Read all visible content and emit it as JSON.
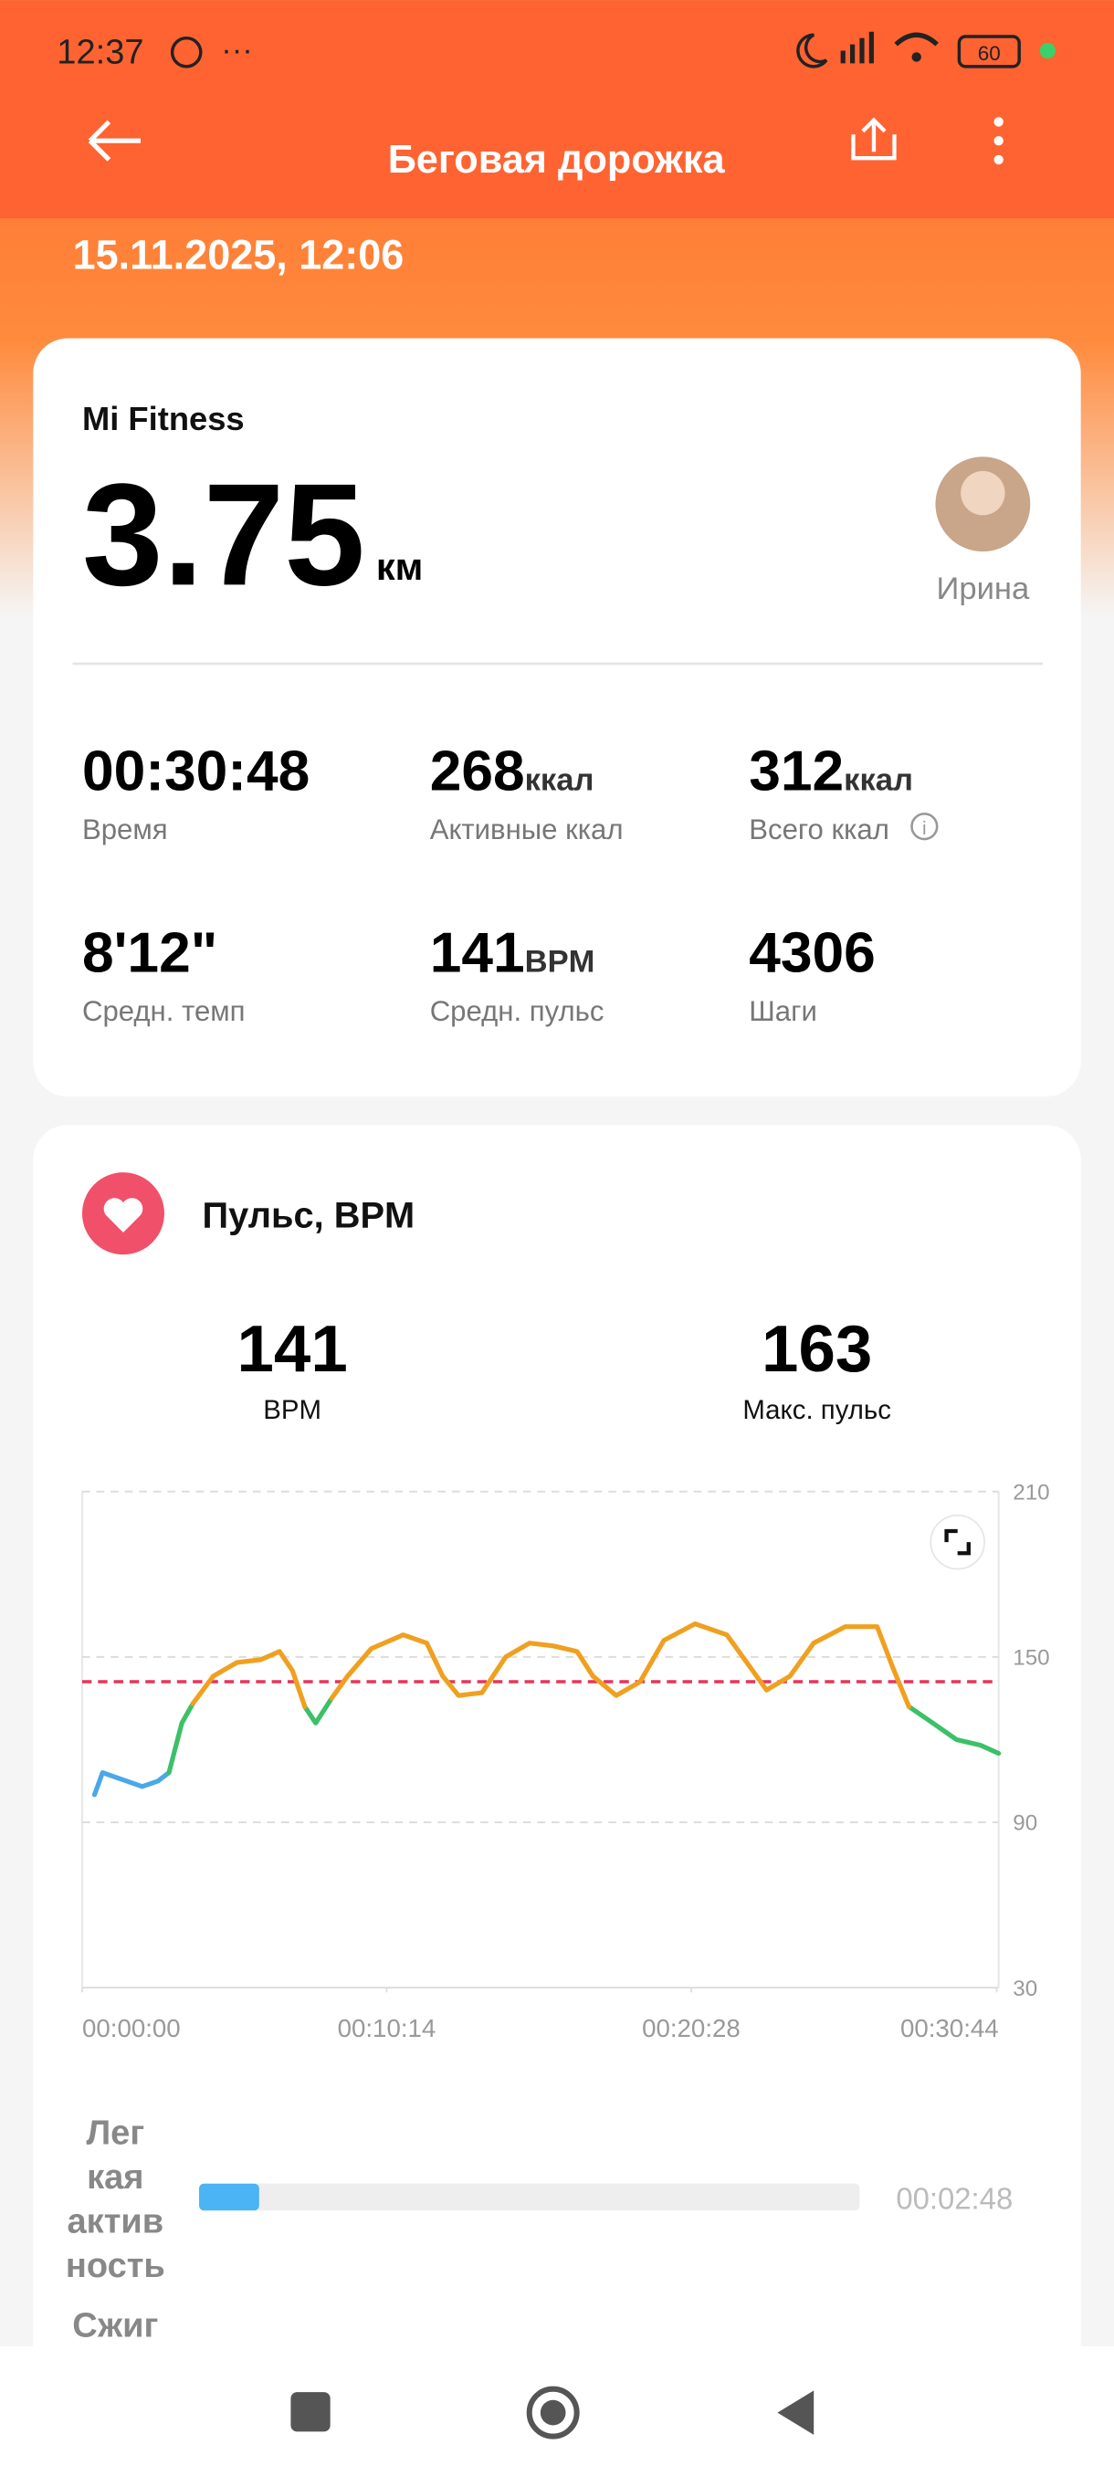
{
  "status_bar": {
    "time": "12:37",
    "battery": "60"
  },
  "header": {
    "title": "Беговая дорожка",
    "date": "15.11.2025, 12:06"
  },
  "summary": {
    "source": "Mi Fitness",
    "distance": "3.75",
    "unit": "км",
    "user": "Ирина",
    "stats": [
      {
        "value": "00:30:48",
        "label": "Время"
      },
      {
        "value": "268",
        "unit": "ккал",
        "label": "Активные ккал"
      },
      {
        "value": "312",
        "unit": "ккал",
        "label": "Всего ккал"
      },
      {
        "value": "8'12\"",
        "label": "Средн. темп"
      },
      {
        "value": "141",
        "unit": "BPM",
        "label": "Средн. пульс"
      },
      {
        "value": "4306",
        "label": "Шаги"
      }
    ]
  },
  "heart": {
    "title": "Пульс, BPM",
    "avg": {
      "value": "141",
      "label": "BPM"
    },
    "max": {
      "value": "163",
      "label": "Макс. пульс"
    }
  },
  "chart_data": {
    "type": "line",
    "x": [
      25,
      41,
      73,
      121,
      153,
      175,
      201,
      223,
      264,
      312,
      360,
      398,
      424,
      449,
      471,
      503,
      535,
      583,
      647,
      695,
      727,
      759,
      806,
      854,
      902,
      950,
      998,
      1030,
      1077,
      1125,
      1173,
      1236,
      1300,
      1348,
      1380,
      1427,
      1475,
      1539,
      1603,
      1635,
      1667,
      1715,
      1763,
      1811,
      1848
    ],
    "series": [
      {
        "color": "#4aa8e8",
        "values": [
          100,
          108,
          106,
          103,
          105,
          108,
          null,
          null,
          null,
          null,
          null,
          null,
          null,
          null,
          null,
          null,
          null,
          null,
          null,
          null,
          null,
          null,
          null,
          null,
          null,
          null,
          null,
          null,
          null,
          null,
          null,
          null,
          null,
          null,
          null,
          null,
          null,
          null,
          null,
          null,
          null,
          null,
          null,
          null,
          null
        ]
      },
      {
        "color": "#3cc068",
        "values": [
          null,
          null,
          null,
          null,
          null,
          108,
          126,
          133,
          null,
          null,
          null,
          null,
          null,
          132,
          126,
          135,
          null,
          null,
          null,
          null,
          null,
          null,
          null,
          null,
          null,
          null,
          null,
          null,
          null,
          null,
          null,
          null,
          null,
          null,
          null,
          null,
          null,
          null,
          null,
          null,
          132,
          126,
          120,
          118,
          115
        ]
      },
      {
        "color": "#f0a020",
        "values": [
          null,
          null,
          null,
          null,
          null,
          null,
          null,
          133,
          143,
          148,
          149,
          152,
          145,
          132,
          null,
          135,
          143,
          153,
          158,
          155,
          143,
          136,
          137,
          150,
          155,
          154,
          152,
          143,
          136,
          141,
          156,
          162,
          158,
          146,
          138,
          143,
          155,
          161,
          161,
          146,
          132,
          null,
          null,
          null,
          null
        ]
      }
    ],
    "average": 141,
    "average_color": "#e8345a",
    "xlim": [
      0,
      1848
    ],
    "xticks": [
      {
        "value": 0,
        "label": "00:00:00"
      },
      {
        "value": 614,
        "label": "00:10:14"
      },
      {
        "value": 1228,
        "label": "00:20:28"
      },
      {
        "value": 1844,
        "label": "00:30:44"
      }
    ],
    "ylim": [
      30,
      210
    ],
    "yticks": [
      30,
      90,
      150,
      210
    ],
    "grid": true
  },
  "zones": [
    {
      "label_lines": [
        "Лег",
        "кая",
        "актив",
        "ность"
      ],
      "duration": "00:02:48",
      "color": "#4ab4f4"
    },
    {
      "label_lines": [
        "Сжиг"
      ]
    }
  ]
}
